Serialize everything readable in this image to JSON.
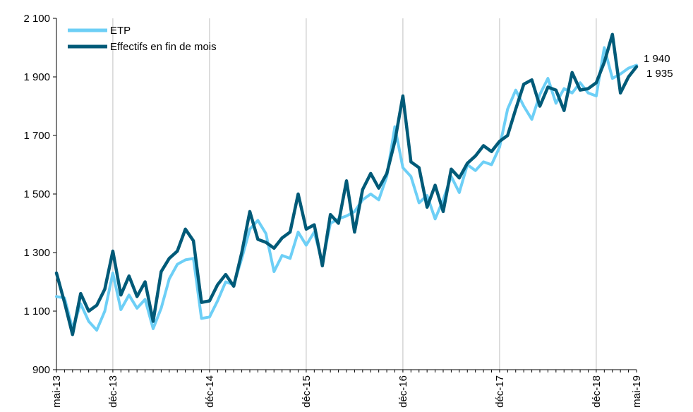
{
  "chart_data": {
    "type": "line",
    "title": "",
    "xlabel": "",
    "ylabel": "",
    "ylim": [
      900,
      2100
    ],
    "yticks": [
      900,
      1100,
      1300,
      1500,
      1700,
      1900,
      2100
    ],
    "ytick_labels": [
      "900",
      "1 100",
      "1 300",
      "1 500",
      "1 700",
      "1 900",
      "2 100"
    ],
    "x_months": [
      "2013-05",
      "2013-06",
      "2013-07",
      "2013-08",
      "2013-09",
      "2013-10",
      "2013-11",
      "2013-12",
      "2014-01",
      "2014-02",
      "2014-03",
      "2014-04",
      "2014-05",
      "2014-06",
      "2014-07",
      "2014-08",
      "2014-09",
      "2014-10",
      "2014-11",
      "2014-12",
      "2015-01",
      "2015-02",
      "2015-03",
      "2015-04",
      "2015-05",
      "2015-06",
      "2015-07",
      "2015-08",
      "2015-09",
      "2015-10",
      "2015-11",
      "2015-12",
      "2016-01",
      "2016-02",
      "2016-03",
      "2016-04",
      "2016-05",
      "2016-06",
      "2016-07",
      "2016-08",
      "2016-09",
      "2016-10",
      "2016-11",
      "2016-12",
      "2017-01",
      "2017-02",
      "2017-03",
      "2017-04",
      "2017-05",
      "2017-06",
      "2017-07",
      "2017-08",
      "2017-09",
      "2017-10",
      "2017-11",
      "2017-12",
      "2018-01",
      "2018-02",
      "2018-03",
      "2018-04",
      "2018-05",
      "2018-06",
      "2018-07",
      "2018-08",
      "2018-09",
      "2018-10",
      "2018-11",
      "2018-12",
      "2019-01",
      "2019-02",
      "2019-03",
      "2019-04",
      "2019-05"
    ],
    "xtick_months": [
      "2013-05",
      "2013-12",
      "2014-12",
      "2015-12",
      "2016-12",
      "2017-12",
      "2018-12",
      "2019-05"
    ],
    "xtick_labels": [
      "mai-13",
      "déc-13",
      "déc-14",
      "déc-15",
      "déc-16",
      "déc-17",
      "déc-18",
      "mai-19"
    ],
    "vgrid_months": [
      "2013-12",
      "2014-12",
      "2015-12",
      "2016-12",
      "2017-12",
      "2018-12"
    ],
    "grid": true,
    "legend_position": "top-left",
    "series": [
      {
        "name": "ETP",
        "color": "#6dcff6",
        "values": [
          1150,
          1145,
          1040,
          1125,
          1065,
          1035,
          1100,
          1230,
          1105,
          1155,
          1110,
          1140,
          1040,
          1110,
          1210,
          1260,
          1275,
          1280,
          1075,
          1080,
          1135,
          1200,
          1190,
          1280,
          1380,
          1410,
          1365,
          1235,
          1290,
          1280,
          1370,
          1325,
          1370,
          1265,
          1400,
          1415,
          1425,
          1440,
          1480,
          1500,
          1480,
          1560,
          1730,
          1590,
          1560,
          1470,
          1495,
          1415,
          1480,
          1560,
          1505,
          1600,
          1580,
          1610,
          1600,
          1660,
          1790,
          1855,
          1800,
          1755,
          1840,
          1895,
          1810,
          1860,
          1845,
          1880,
          1845,
          1835,
          2000,
          1895,
          1910,
          1930,
          1940
        ]
      },
      {
        "name": "Effectifs en fin de mois",
        "color": "#005a78",
        "values": [
          1230,
          1130,
          1020,
          1160,
          1100,
          1120,
          1175,
          1305,
          1155,
          1220,
          1150,
          1200,
          1065,
          1235,
          1280,
          1305,
          1380,
          1340,
          1130,
          1135,
          1190,
          1225,
          1185,
          1300,
          1440,
          1345,
          1335,
          1315,
          1350,
          1370,
          1500,
          1380,
          1395,
          1255,
          1430,
          1400,
          1545,
          1370,
          1515,
          1570,
          1520,
          1570,
          1680,
          1835,
          1610,
          1590,
          1455,
          1530,
          1440,
          1585,
          1555,
          1605,
          1630,
          1665,
          1645,
          1680,
          1700,
          1790,
          1875,
          1890,
          1800,
          1865,
          1855,
          1785,
          1915,
          1855,
          1860,
          1880,
          1950,
          2045,
          1845,
          1900,
          1935
        ]
      }
    ],
    "end_labels": [
      "1 940",
      "1 935"
    ]
  }
}
